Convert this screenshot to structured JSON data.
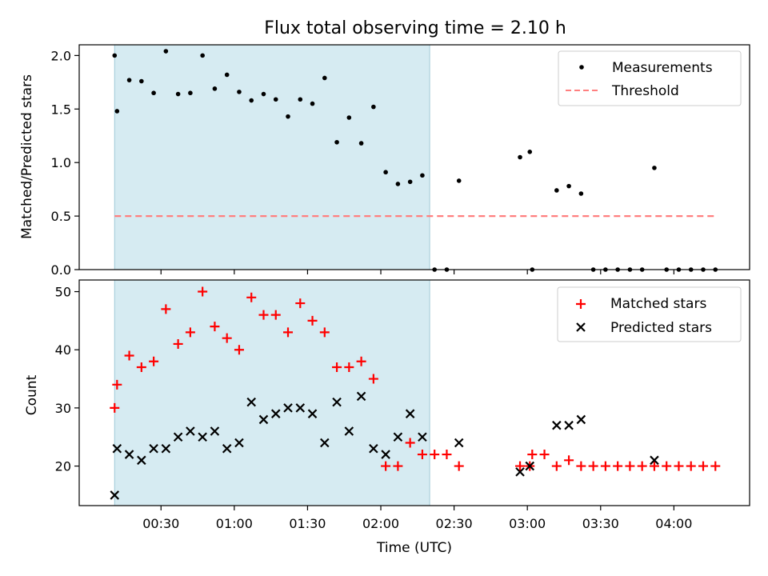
{
  "chart_data": [
    {
      "type": "scatter",
      "title": "Flux total observing time = 2.10 h",
      "xlabel": "",
      "ylabel": "Matched/Predicted stars",
      "xlim": [
        -3.5,
        271
      ],
      "ylim": [
        0,
        2.1
      ],
      "yticks": [
        0.0,
        0.5,
        1.0,
        1.5,
        2.0
      ],
      "ytick_labels": [
        "0.0",
        "0.5",
        "1.0",
        "1.5",
        "2.0"
      ],
      "xticks": [
        30,
        60,
        90,
        120,
        150,
        180,
        210,
        240
      ],
      "shaded_span": [
        11,
        140
      ],
      "legend_position": "upper right",
      "series": [
        {
          "name": "Measurements",
          "kind": "points",
          "color": "#000000",
          "x": [
            11,
            12,
            17,
            22,
            27,
            32,
            37,
            42,
            47,
            52,
            57,
            62,
            67,
            72,
            77,
            82,
            87,
            92,
            97,
            102,
            107,
            112,
            117,
            122,
            127,
            132,
            137,
            142,
            147,
            152,
            177,
            181,
            182,
            192,
            197,
            202,
            207,
            212,
            217,
            222,
            227,
            232,
            237,
            242,
            247,
            252,
            257
          ],
          "y": [
            2.0,
            1.48,
            1.77,
            1.76,
            1.65,
            2.04,
            1.64,
            1.65,
            2.0,
            1.69,
            1.82,
            1.66,
            1.58,
            1.64,
            1.59,
            1.43,
            1.59,
            1.55,
            1.79,
            1.19,
            1.42,
            1.18,
            1.52,
            0.91,
            0.8,
            0.82,
            0.88,
            0.0,
            0.0,
            0.83,
            1.05,
            1.1,
            0.0,
            0.74,
            0.78,
            0.71,
            0.0,
            0.0,
            0.0,
            0.0,
            0.0,
            0.95,
            0.0,
            0.0,
            0.0,
            0.0,
            0.0
          ]
        },
        {
          "name": "Threshold",
          "kind": "dashed-line",
          "color": "#ff7f7f",
          "x": [
            11,
            258
          ],
          "y": [
            0.5,
            0.5
          ]
        }
      ]
    },
    {
      "type": "scatter",
      "title": "",
      "xlabel": "Time (UTC)",
      "ylabel": "Count",
      "xlim": [
        -3.5,
        271
      ],
      "ylim": [
        13.2,
        52
      ],
      "yticks": [
        20,
        30,
        40,
        50
      ],
      "ytick_labels": [
        "20",
        "30",
        "40",
        "50"
      ],
      "xticks": [
        30,
        60,
        90,
        120,
        150,
        180,
        210,
        240
      ],
      "xtick_labels": [
        "00:30",
        "01:00",
        "01:30",
        "02:00",
        "02:30",
        "03:00",
        "03:30",
        "04:00"
      ],
      "shaded_span": [
        11,
        140
      ],
      "legend_position": "upper right",
      "series": [
        {
          "name": "Matched stars",
          "marker": "plus",
          "color": "#ff0000",
          "x": [
            11,
            12,
            17,
            22,
            27,
            32,
            37,
            42,
            47,
            52,
            57,
            62,
            67,
            72,
            77,
            82,
            87,
            92,
            97,
            102,
            107,
            112,
            117,
            122,
            127,
            132,
            137,
            142,
            147,
            152,
            177,
            181,
            182,
            187,
            192,
            197,
            202,
            207,
            212,
            217,
            222,
            227,
            232,
            237,
            242,
            247,
            252,
            257
          ],
          "y": [
            30,
            34,
            39,
            37,
            38,
            47,
            41,
            43,
            50,
            44,
            42,
            40,
            49,
            46,
            46,
            43,
            48,
            45,
            43,
            37,
            37,
            38,
            35,
            20,
            20,
            24,
            22,
            22,
            22,
            20,
            20,
            20,
            22,
            22,
            20,
            21,
            20,
            20,
            20,
            20,
            20,
            20,
            20,
            20,
            20,
            20,
            20,
            20
          ]
        },
        {
          "name": "Predicted stars",
          "marker": "x",
          "color": "#000000",
          "x": [
            11,
            12,
            17,
            22,
            27,
            32,
            37,
            42,
            47,
            52,
            57,
            62,
            67,
            72,
            77,
            82,
            87,
            92,
            97,
            102,
            107,
            112,
            117,
            122,
            127,
            132,
            137,
            152,
            177,
            181,
            192,
            197,
            202,
            232
          ],
          "y": [
            15,
            23,
            22,
            21,
            23,
            23,
            25,
            26,
            25,
            26,
            23,
            24,
            31,
            28,
            29,
            30,
            30,
            29,
            24,
            31,
            26,
            32,
            23,
            22,
            25,
            29,
            25,
            24,
            19,
            20,
            27,
            27,
            28,
            21
          ]
        }
      ]
    }
  ]
}
